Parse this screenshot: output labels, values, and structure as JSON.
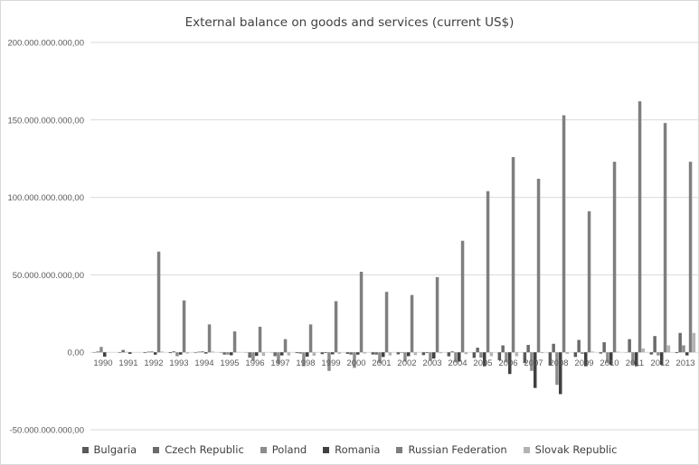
{
  "chart_data": {
    "type": "bar",
    "title": "External balance on goods and services (current US$)",
    "categories": [
      "1990",
      "1991",
      "1992",
      "1993",
      "1994",
      "1995",
      "1996",
      "1997",
      "1998",
      "1999",
      "2000",
      "2001",
      "2002",
      "2003",
      "2004",
      "2005",
      "2006",
      "2007",
      "2008",
      "2009",
      "2010",
      "2011",
      "2012",
      "2013"
    ],
    "ylim": [
      -50000000000,
      200000000000
    ],
    "y_ticks": [
      200000000000,
      150000000000,
      100000000000,
      50000000000,
      0,
      -50000000000
    ],
    "y_tick_labels": [
      "200.000.000.000,00",
      "150.000.000.000,00",
      "100.000.000.000,00",
      "50.000.000.000,00",
      "0,00",
      "-50.000.000.000,00"
    ],
    "grid": true,
    "legend_position": "bottom",
    "series": [
      {
        "name": "Bulgaria",
        "color": "#595959",
        "values": [
          -0.2,
          -0.3,
          -0.4,
          -0.5,
          -0.3,
          -0.2,
          -0.1,
          -0.1,
          -0.5,
          -1.2,
          -1.0,
          -1.4,
          -1.3,
          -1.8,
          -2.6,
          -3.6,
          -5.1,
          -7.0,
          -8.5,
          -3.0,
          -0.8,
          -0.1,
          -1.4,
          -0.5
        ]
      },
      {
        "name": "Czech Republic",
        "color": "#6b6b6b",
        "values": [
          0.5,
          1.5,
          0.4,
          0.6,
          0.4,
          -1.5,
          -3.5,
          -2.5,
          -0.8,
          -0.5,
          -1.5,
          -1.5,
          -0.3,
          -0.5,
          0.6,
          3.0,
          4.5,
          4.8,
          5.5,
          8.0,
          6.5,
          8.5,
          10.5,
          12.5
        ]
      },
      {
        "name": "Poland",
        "color": "#8c8c8c",
        "values": [
          3.5,
          0.2,
          0.6,
          -2.5,
          0.7,
          -1.5,
          -5.5,
          -7.5,
          -9.0,
          -12.0,
          -10.0,
          -7.0,
          -6.0,
          -5.5,
          -6.5,
          -3.5,
          -6.5,
          -12.0,
          -21.0,
          -1.0,
          -7.0,
          -8.0,
          -2.0,
          4.5
        ]
      },
      {
        "name": "Romania",
        "color": "#404040",
        "values": [
          -2.8,
          -1.0,
          -1.5,
          -1.5,
          -0.8,
          -1.9,
          -2.3,
          -2.0,
          -2.8,
          -1.3,
          -1.5,
          -3.0,
          -2.5,
          -4.0,
          -6.0,
          -9.0,
          -14.0,
          -23.0,
          -27.0,
          -9.0,
          -8.0,
          -9.0,
          -8.0,
          -2.0
        ]
      },
      {
        "name": "Russian Federation",
        "color": "#7f7f7f",
        "values": [
          0,
          0,
          65.0,
          33.5,
          18.0,
          13.5,
          16.5,
          8.5,
          18.0,
          33.0,
          52.0,
          39.0,
          37.0,
          48.5,
          72.0,
          104.0,
          126.0,
          112.0,
          153.0,
          91.0,
          123.0,
          162.0,
          148.0,
          123.0
        ]
      },
      {
        "name": "Slovak Republic",
        "color": "#b3b3b3",
        "values": [
          0,
          0,
          0.5,
          -0.8,
          0.5,
          0.2,
          -2.3,
          -2.0,
          -2.2,
          -1.0,
          -0.8,
          -2.0,
          -1.8,
          -0.6,
          -1.2,
          -2.5,
          -2.5,
          -0.5,
          -1.0,
          0.5,
          0.4,
          2.5,
          4.5,
          12.5
        ]
      }
    ],
    "value_unit_note": "values in billions"
  }
}
